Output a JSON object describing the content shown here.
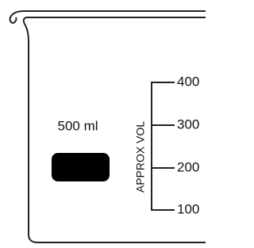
{
  "beaker": {
    "capacity_label": "500 ml",
    "scale_title": "APPROX VOL",
    "scale_labels": [
      "400",
      "300",
      "200",
      "100"
    ]
  }
}
